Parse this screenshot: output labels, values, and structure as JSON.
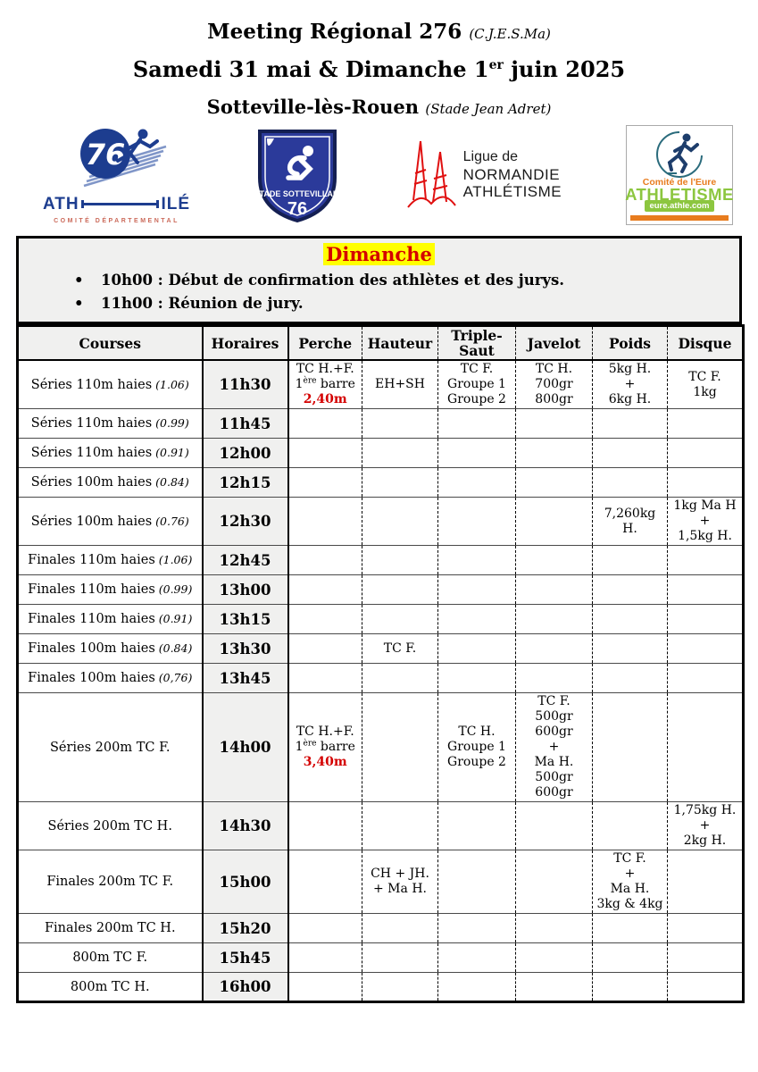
{
  "title": {
    "line1": "Meeting Régional 276",
    "line1_suffix": "(C.J.E.S.Ma)",
    "line2_pre": "Samedi 31 mai & Dimanche 1",
    "line2_sup": "er",
    "line2_post": " juin 2025",
    "line3": "Sotteville-lès-Rouen",
    "line3_suffix": "(Stade Jean Adret)"
  },
  "logos": {
    "comite76": {
      "number": "76",
      "ath": "ATH",
      "ile": "ILÉ",
      "sub": "COMITÉ DÉPARTEMENTAL",
      "color": "#1d3d8f",
      "sub_color": "#cb6a5a"
    },
    "stade_sottevillais": {
      "name": "STADE SOTTEVILLAIS",
      "number": "76",
      "color": "#2b3a9a"
    },
    "normandie": {
      "line1": "Ligue de",
      "line2": "NORMANDIE",
      "line3": "ATHLÉTISME",
      "spire_color": "#e01010"
    },
    "eure": {
      "comite": "Comité de l'Eure",
      "athletisme": "ATHLETISME",
      "url": "eure.athle.com",
      "green": "#8cc63f",
      "orange": "#e87c1e"
    }
  },
  "section": {
    "title": "Dimanche",
    "highlight_color": "#ffff00",
    "title_color": "#d40000",
    "bullets": [
      "10h00 : Début de confirmation des athlètes et des jurys.",
      "11h00 : Réunion de jury."
    ]
  },
  "table": {
    "headers": [
      "Courses",
      "Horaires",
      "Perche",
      "Hauteur",
      "Triple-Saut",
      "Javelot",
      "Poids",
      "Disque"
    ],
    "accent_red": "#d40000",
    "shade_color": "#f0f0ef",
    "rows": [
      {
        "course": {
          "name": "Séries 110m haies",
          "spec": "(1.06)"
        },
        "time": "11h30",
        "events": {
          "perche": [
            "TC H.+F.",
            {
              "pre": "1",
              "sup": "ère",
              "post": " barre"
            },
            {
              "pre": "2,40m",
              "red": true
            }
          ],
          "hauteur": [
            "EH+SH"
          ],
          "triple_saut": [
            "TC F.",
            "Groupe 1",
            "Groupe 2"
          ],
          "javelot": [
            "TC H.",
            "700gr",
            "800gr"
          ],
          "poids": [
            "5kg H.",
            "+",
            "6kg H."
          ],
          "disque": [
            "TC F.",
            "1kg"
          ]
        }
      },
      {
        "course": {
          "name": "Séries 110m haies",
          "spec": "(0.99)"
        },
        "time": "11h45",
        "events": {}
      },
      {
        "course": {
          "name": "Séries 110m haies",
          "spec": "(0.91)"
        },
        "time": "12h00",
        "events": {}
      },
      {
        "course": {
          "name": "Séries 100m haies",
          "spec": "(0.84)"
        },
        "time": "12h15",
        "events": {}
      },
      {
        "course": {
          "name": "Séries 100m haies",
          "spec": "(0.76)"
        },
        "time": "12h30",
        "events": {
          "poids": [
            "7,260kg",
            "H."
          ],
          "disque": [
            "1kg Ma H",
            "+",
            "1,5kg H."
          ]
        }
      },
      {
        "course": {
          "name": "Finales 110m haies",
          "spec": "(1.06)"
        },
        "time": "12h45",
        "events": {}
      },
      {
        "course": {
          "name": "Finales 110m haies",
          "spec": "(0.99)"
        },
        "time": "13h00",
        "events": {}
      },
      {
        "course": {
          "name": "Finales 110m haies",
          "spec": "(0.91)"
        },
        "time": "13h15",
        "events": {}
      },
      {
        "course": {
          "name": "Finales 100m haies",
          "spec": "(0.84)"
        },
        "time": "13h30",
        "events": {
          "hauteur": [
            "TC F."
          ]
        }
      },
      {
        "course": {
          "name": "Finales 100m haies",
          "spec": "(0,76)"
        },
        "time": "13h45",
        "events": {}
      },
      {
        "course": {
          "name": "Séries 200m TC F.",
          "spec": ""
        },
        "time": "14h00",
        "events": {
          "perche": [
            "TC H.+F.",
            {
              "pre": "1",
              "sup": "ère",
              "post": " barre"
            },
            {
              "pre": "3,40m",
              "red": true
            }
          ],
          "triple_saut": [
            "TC H.",
            "Groupe 1",
            "Groupe 2"
          ],
          "javelot": [
            "TC F.",
            "500gr",
            "600gr",
            "+",
            "Ma H.",
            "500gr",
            "600gr"
          ]
        }
      },
      {
        "course": {
          "name": "Séries 200m TC H.",
          "spec": ""
        },
        "time": "14h30",
        "events": {
          "disque": [
            "1,75kg H.",
            "+",
            "2kg H."
          ]
        }
      },
      {
        "course": {
          "name": "Finales 200m TC F.",
          "spec": ""
        },
        "time": "15h00",
        "events": {
          "hauteur": [
            "CH + JH.",
            "+ Ma H."
          ],
          "poids": [
            "TC F.",
            "+",
            "Ma H.",
            "3kg & 4kg"
          ]
        }
      },
      {
        "course": {
          "name": "Finales 200m TC H.",
          "spec": ""
        },
        "time": "15h20",
        "events": {}
      },
      {
        "course": {
          "name": "800m TC F.",
          "spec": ""
        },
        "time": "15h45",
        "events": {}
      },
      {
        "course": {
          "name": "800m TC H.",
          "spec": ""
        },
        "time": "16h00",
        "events": {}
      }
    ]
  }
}
